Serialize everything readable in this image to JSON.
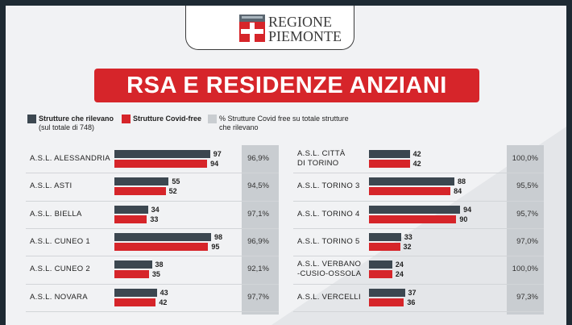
{
  "header": {
    "logo_line1": "REGIONE",
    "logo_line2": "PIEMONTE",
    "title": "RSA E RESIDENZE ANZIANI"
  },
  "legend": {
    "series1": "Strutture che rilevano",
    "series1_note": "(sul totale di 748)",
    "series2": "Strutture Covid-free",
    "series3": "% Strutture Covid free su totale strutture che rilevano"
  },
  "colors": {
    "rilevano": "#3c4750",
    "covid_free": "#d6252a",
    "percent_column": "#c9cdd1",
    "background_dark": "#1e2a33"
  },
  "chart_data": {
    "type": "bar",
    "orientation": "horizontal",
    "series": [
      {
        "name": "Strutture che rilevano"
      },
      {
        "name": "Strutture Covid-free"
      }
    ],
    "left": [
      {
        "label": "A.S.L. ALESSANDRIA",
        "rilevano": 97,
        "covid_free": 94,
        "pct": "96,9%"
      },
      {
        "label": "A.S.L. ASTI",
        "rilevano": 55,
        "covid_free": 52,
        "pct": "94,5%"
      },
      {
        "label": "A.S.L. BIELLA",
        "rilevano": 34,
        "covid_free": 33,
        "pct": "97,1%"
      },
      {
        "label": "A.S.L. CUNEO 1",
        "rilevano": 98,
        "covid_free": 95,
        "pct": "96,9%"
      },
      {
        "label": "A.S.L. CUNEO 2",
        "rilevano": 38,
        "covid_free": 35,
        "pct": "92,1%"
      },
      {
        "label": "A.S.L. NOVARA",
        "rilevano": 43,
        "covid_free": 42,
        "pct": "97,7%"
      }
    ],
    "right": [
      {
        "label": "A.S.L. CITTÀ\nDI TORINO",
        "rilevano": 42,
        "covid_free": 42,
        "pct": "100,0%"
      },
      {
        "label": "A.S.L. TORINO 3",
        "rilevano": 88,
        "covid_free": 84,
        "pct": "95,5%"
      },
      {
        "label": "A.S.L. TORINO 4",
        "rilevano": 94,
        "covid_free": 90,
        "pct": "95,7%"
      },
      {
        "label": "A.S.L. TORINO 5",
        "rilevano": 33,
        "covid_free": 32,
        "pct": "97,0%"
      },
      {
        "label": "A.S.L. VERBANO\n-CUSIO-OSSOLA",
        "rilevano": 24,
        "covid_free": 24,
        "pct": "100,0%"
      },
      {
        "label": "A.S.L. VERCELLI",
        "rilevano": 37,
        "covid_free": 36,
        "pct": "97,3%"
      }
    ]
  }
}
